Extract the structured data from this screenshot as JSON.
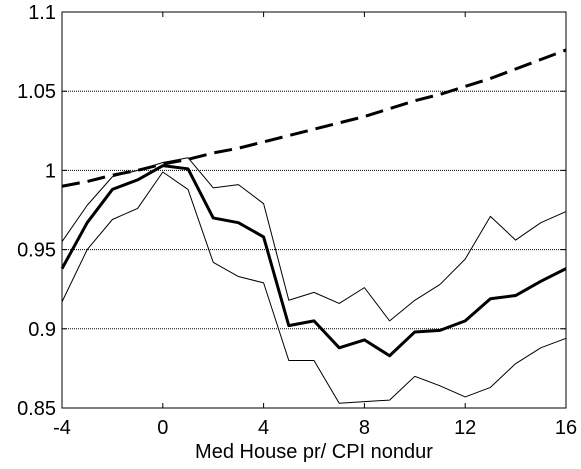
{
  "chart_data": {
    "type": "line",
    "xlabel": "Med House pr/ CPI nondur",
    "x": [
      -4,
      -3,
      -2,
      -1,
      0,
      1,
      2,
      3,
      4,
      5,
      6,
      7,
      8,
      9,
      10,
      11,
      12,
      13,
      14,
      15,
      16
    ],
    "series": [
      {
        "color": "#000000",
        "width": 1,
        "dash": false,
        "values": [
          0.955,
          0.978,
          0.996,
          1.0,
          1.005,
          1.008,
          0.989,
          0.991,
          0.979,
          0.918,
          0.923,
          0.916,
          0.926,
          0.905,
          0.918,
          0.928,
          0.944,
          0.971,
          0.956,
          0.967,
          0.974
        ]
      },
      {
        "color": "#000000",
        "width": 1,
        "dash": false,
        "values": [
          0.917,
          0.95,
          0.969,
          0.976,
          0.999,
          0.988,
          0.942,
          0.933,
          0.929,
          0.88,
          0.88,
          0.853,
          0.854,
          0.855,
          0.87,
          0.864,
          0.857,
          0.863,
          0.878,
          0.888,
          0.894
        ]
      },
      {
        "color": "#000000",
        "width": 3,
        "dash": false,
        "values": [
          0.938,
          0.967,
          0.988,
          0.994,
          1.003,
          1.001,
          0.97,
          0.967,
          0.958,
          0.902,
          0.905,
          0.888,
          0.893,
          0.883,
          0.898,
          0.899,
          0.905,
          0.919,
          0.921,
          0.93,
          0.938
        ]
      },
      {
        "color": "#000000",
        "width": 3,
        "dash": true,
        "values": [
          0.99,
          0.993,
          0.997,
          1.0,
          1.004,
          1.007,
          1.011,
          1.014,
          1.018,
          1.022,
          1.026,
          1.03,
          1.034,
          1.039,
          1.044,
          1.048,
          1.053,
          1.058,
          1.064,
          1.07,
          1.076
        ]
      }
    ],
    "xlim": [
      -4,
      16
    ],
    "xticks": [
      -4,
      0,
      4,
      8,
      12,
      16
    ],
    "ylim": [
      0.85,
      1.1
    ],
    "yticks": [
      0.85,
      0.9,
      0.95,
      1,
      1.05,
      1.1
    ],
    "grid": true
  }
}
